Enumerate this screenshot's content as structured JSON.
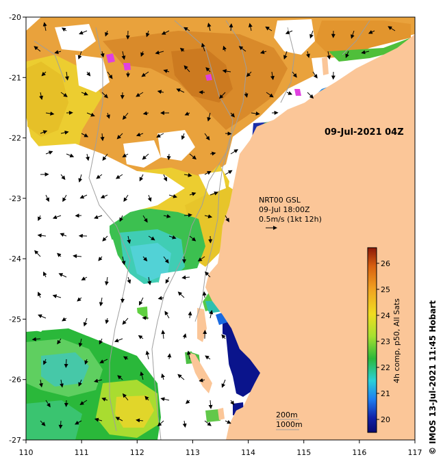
{
  "map": {
    "date_label": "09-Jul-2021 04Z",
    "current_info": {
      "line1": "NRT00 GSL",
      "line2": "09-Jul 18:00Z",
      "line3": "0.5m/s (1kt 12h)"
    },
    "bathymetry": {
      "line1": "200m",
      "line2": "1000m"
    },
    "longitude_ticks": [
      "110",
      "111",
      "112",
      "113",
      "114",
      "115",
      "116",
      "117"
    ],
    "latitude_ticks": [
      "-20",
      "-21",
      "-22",
      "-23",
      "-24",
      "-25",
      "-26",
      "-27"
    ],
    "lon_range": [
      110,
      117
    ],
    "lat_range": [
      -27,
      -20
    ],
    "colorbar": {
      "title": "4h comp, p50, All Sats",
      "ticks": [
        "20",
        "21",
        "22",
        "23",
        "24",
        "25",
        "26"
      ],
      "range": [
        19.5,
        26.6
      ]
    },
    "credit": "© IMOS 13-Jul-2021 11:45 Hobart",
    "colors": {
      "land": "#fbc698",
      "cloud": "#ffffff"
    }
  }
}
